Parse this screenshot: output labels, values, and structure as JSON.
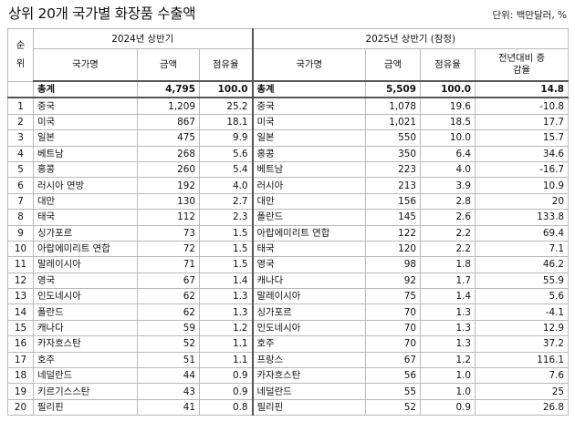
{
  "title": "상위 20개 국가별 화장품 수출액",
  "unit": "단위: 백만달러, %",
  "headers": {
    "rank": "순위",
    "period1": "2024년 상반기",
    "period2": "2025년 상반기 (잠정)",
    "country": "국가명",
    "amount": "금액",
    "share": "점유율",
    "change": "전년대비 증감율"
  },
  "total": {
    "label1": "총계",
    "amount1": "4,795",
    "share1": "100.0",
    "label2": "총계",
    "amount2": "5,509",
    "share2": "100.0",
    "change": "14.8"
  },
  "rows": [
    {
      "rank": "1",
      "c1": "중국",
      "a1": "1,209",
      "s1": "25.2",
      "c2": "중국",
      "a2": "1,078",
      "s2": "19.6",
      "g": "-10.8"
    },
    {
      "rank": "2",
      "c1": "미국",
      "a1": "867",
      "s1": "18.1",
      "c2": "미국",
      "a2": "1,021",
      "s2": "18.5",
      "g": "17.7"
    },
    {
      "rank": "3",
      "c1": "일본",
      "a1": "475",
      "s1": "9.9",
      "c2": "일본",
      "a2": "550",
      "s2": "10.0",
      "g": "15.7"
    },
    {
      "rank": "4",
      "c1": "베트남",
      "a1": "268",
      "s1": "5.6",
      "c2": "홍콩",
      "a2": "350",
      "s2": "6.4",
      "g": "34.6"
    },
    {
      "rank": "5",
      "c1": "홍콩",
      "a1": "260",
      "s1": "5.4",
      "c2": "베트남",
      "a2": "223",
      "s2": "4.0",
      "g": "-16.7"
    },
    {
      "rank": "6",
      "c1": "러시아 연방",
      "a1": "192",
      "s1": "4.0",
      "c2": "러시아",
      "a2": "213",
      "s2": "3.9",
      "g": "10.9"
    },
    {
      "rank": "7",
      "c1": "대만",
      "a1": "130",
      "s1": "2.7",
      "c2": "대만",
      "a2": "156",
      "s2": "2.8",
      "g": "20"
    },
    {
      "rank": "8",
      "c1": "태국",
      "a1": "112",
      "s1": "2.3",
      "c2": "폴란드",
      "a2": "145",
      "s2": "2.6",
      "g": "133.8"
    },
    {
      "rank": "9",
      "c1": "싱가포르",
      "a1": "73",
      "s1": "1.5",
      "c2": "아랍에미리트 연합",
      "a2": "122",
      "s2": "2.2",
      "g": "69.4"
    },
    {
      "rank": "10",
      "c1": "아랍에미리트 연합",
      "a1": "72",
      "s1": "1.5",
      "c2": "태국",
      "a2": "120",
      "s2": "2.2",
      "g": "7.1"
    },
    {
      "rank": "11",
      "c1": "말레이시아",
      "a1": "71",
      "s1": "1.5",
      "c2": "영국",
      "a2": "98",
      "s2": "1.8",
      "g": "46.2"
    },
    {
      "rank": "12",
      "c1": "영국",
      "a1": "67",
      "s1": "1.4",
      "c2": "캐나다",
      "a2": "92",
      "s2": "1.7",
      "g": "55.9"
    },
    {
      "rank": "13",
      "c1": "인도네시아",
      "a1": "62",
      "s1": "1.3",
      "c2": "말레이시아",
      "a2": "75",
      "s2": "1.4",
      "g": "5.6"
    },
    {
      "rank": "14",
      "c1": "폴란드",
      "a1": "62",
      "s1": "1.3",
      "c2": "싱가포르",
      "a2": "70",
      "s2": "1.3",
      "g": "-4.1"
    },
    {
      "rank": "15",
      "c1": "캐나다",
      "a1": "59",
      "s1": "1.2",
      "c2": "인도네시아",
      "a2": "70",
      "s2": "1.3",
      "g": "12.9"
    },
    {
      "rank": "16",
      "c1": "카자흐스탄",
      "a1": "52",
      "s1": "1.1",
      "c2": "호주",
      "a2": "70",
      "s2": "1.3",
      "g": "37.2"
    },
    {
      "rank": "17",
      "c1": "호주",
      "a1": "51",
      "s1": "1.1",
      "c2": "프랑스",
      "a2": "67",
      "s2": "1.2",
      "g": "116.1"
    },
    {
      "rank": "18",
      "c1": "네덜란드",
      "a1": "44",
      "s1": "0.9",
      "c2": "카자흐스탄",
      "a2": "56",
      "s2": "1.0",
      "g": "7.6"
    },
    {
      "rank": "19",
      "c1": "키르기스스탄",
      "a1": "43",
      "s1": "0.9",
      "c2": "네덜란드",
      "a2": "55",
      "s2": "1.0",
      "g": "25"
    },
    {
      "rank": "20",
      "c1": "필리핀",
      "a1": "41",
      "s1": "0.8",
      "c2": "필리핀",
      "a2": "52",
      "s2": "0.9",
      "g": "26.8"
    }
  ]
}
